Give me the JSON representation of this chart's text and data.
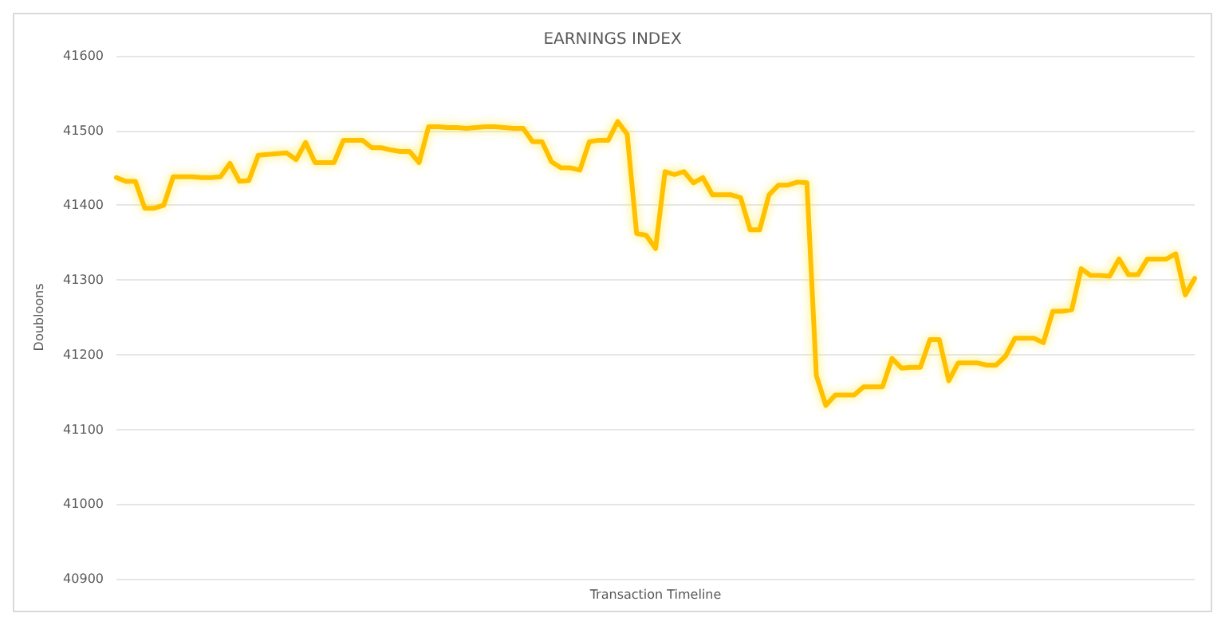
{
  "chart_data": {
    "type": "line",
    "title": "EARNINGS INDEX",
    "xlabel": "Transaction Timeline",
    "ylabel": "Doubloons",
    "categories": [
      null,
      null,
      null,
      null,
      null,
      null,
      null,
      null,
      null,
      null,
      null,
      null,
      null,
      null,
      null,
      null,
      null,
      null,
      null,
      null,
      null,
      null,
      null,
      null,
      null,
      null,
      null,
      null,
      null,
      null,
      null,
      null,
      null,
      null,
      null,
      null,
      null,
      null,
      null,
      null,
      null,
      null,
      null,
      null,
      null,
      null,
      null,
      null,
      null,
      null,
      null,
      null,
      null,
      null,
      null,
      null,
      null,
      null,
      null,
      null,
      null,
      null,
      null,
      null,
      null,
      null,
      null,
      null,
      null,
      null,
      null,
      null,
      null,
      null,
      null,
      null,
      null,
      null,
      null,
      null,
      null,
      null,
      null,
      null,
      null,
      null,
      null,
      null,
      null,
      null,
      null,
      null,
      null,
      null,
      null,
      null,
      null,
      null,
      null,
      null,
      null,
      null,
      null,
      null,
      null,
      null,
      null,
      null,
      null,
      null,
      null,
      null,
      null,
      null,
      null
    ],
    "series": [
      {
        "color": "#ffc000",
        "values": [
          41437,
          41432,
          41432,
          41396,
          41396,
          41400,
          41438,
          41438,
          41438,
          41437,
          41437,
          41438,
          41456,
          41432,
          41433,
          41467,
          41468,
          41469,
          41470,
          41461,
          41484,
          41457,
          41457,
          41457,
          41487,
          41487,
          41487,
          41477,
          41477,
          41474,
          41472,
          41472,
          41457,
          41505,
          41505,
          41504,
          41504,
          41503,
          41504,
          41505,
          41505,
          41504,
          41503,
          41503,
          41485,
          41485,
          41458,
          41450,
          41450,
          41447,
          41485,
          41487,
          41487,
          41512,
          41495,
          41362,
          41360,
          41342,
          41445,
          41441,
          41445,
          41430,
          41437,
          41414,
          41414,
          41414,
          41410,
          41367,
          41367,
          41414,
          41427,
          41427,
          41431,
          41430,
          41172,
          41132,
          41146,
          41146,
          41146,
          41157,
          41157,
          41157,
          41195,
          41182,
          41183,
          41183,
          41220,
          41220,
          41165,
          41189,
          41189,
          41189,
          41186,
          41186,
          41198,
          41222,
          41222,
          41222,
          41216,
          41258,
          41258,
          41260,
          41315,
          41306,
          41306,
          41305,
          41328,
          41307,
          41307,
          41328,
          41328,
          41328,
          41335,
          41280,
          41302
        ]
      }
    ],
    "ylim": [
      40900,
      41600
    ],
    "yticks": [
      40900,
      41000,
      41100,
      41200,
      41300,
      41400,
      41500,
      41600
    ],
    "grid": "y",
    "tick_labels": "y",
    "line_style": "solid"
  }
}
